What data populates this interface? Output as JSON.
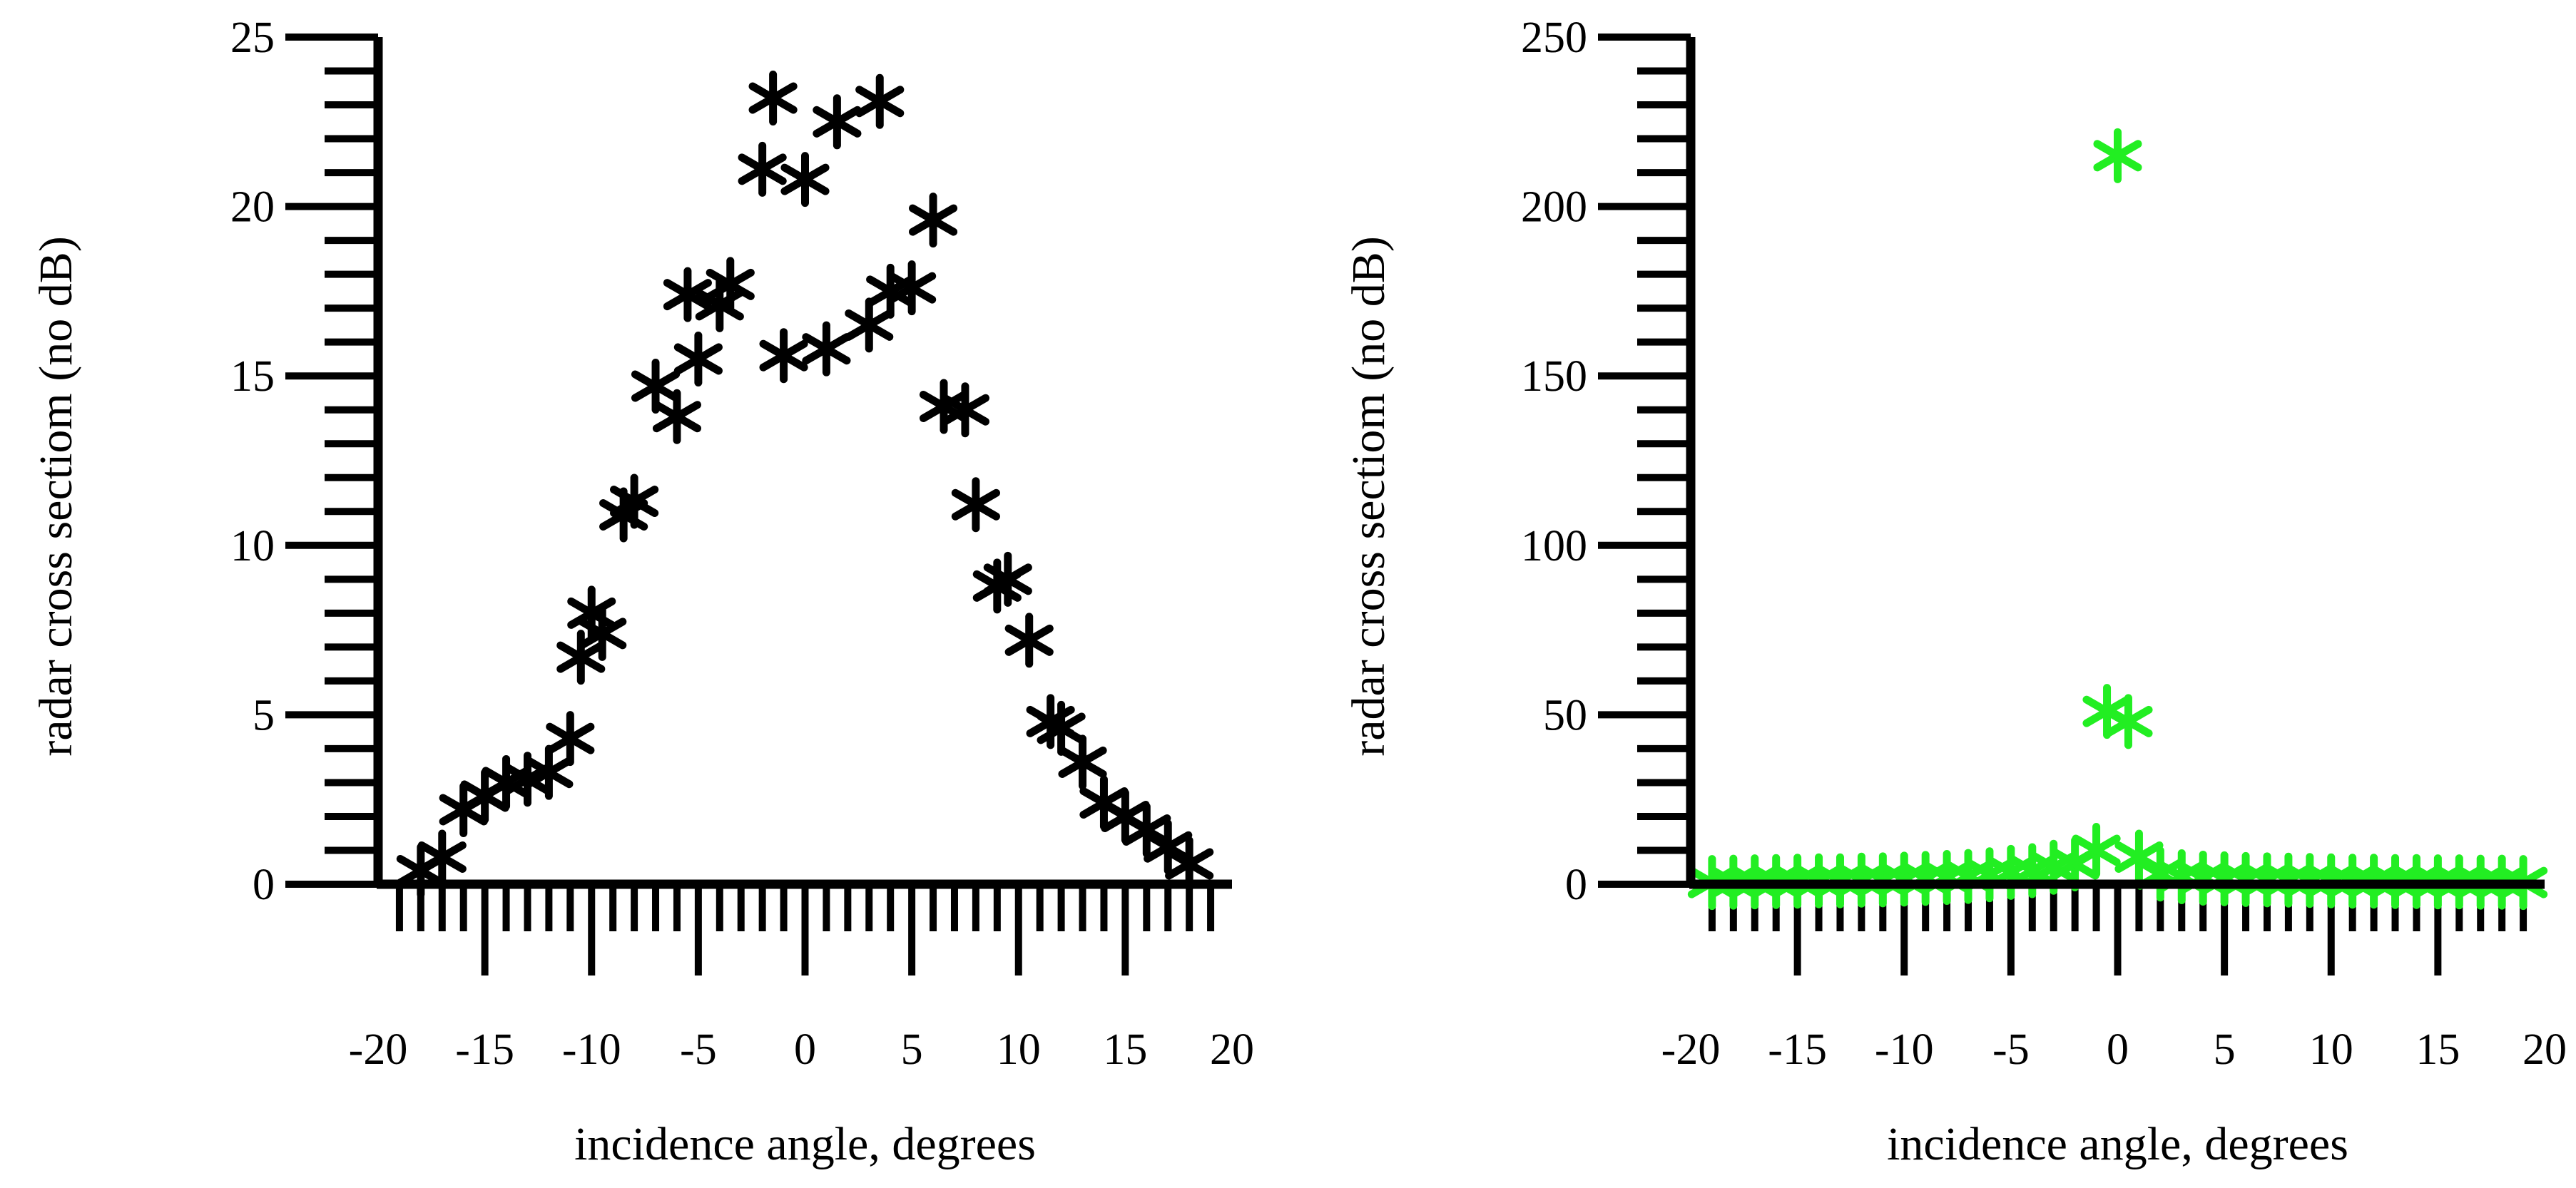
{
  "chart_data": [
    {
      "type": "scatter",
      "xlabel": "incidence angle, degrees",
      "ylabel": "radar cross sectiom (no dB)",
      "xlim": [
        -20,
        20
      ],
      "ylim": [
        0,
        25
      ],
      "xticks": [
        "-20",
        "-15",
        "-10",
        "-5",
        "0",
        "5",
        "10",
        "15",
        "20"
      ],
      "yticks": [
        "0",
        "5",
        "10",
        "15",
        "20",
        "25"
      ],
      "marker": "asterisk",
      "color": "#000000",
      "series": [
        {
          "x": [
            -18,
            -17,
            -16,
            -15,
            -14,
            -13,
            -12,
            -11,
            -10.5,
            -10,
            -9.5,
            -8.5,
            -8,
            -7,
            -6,
            -5.5,
            -5,
            -4,
            -3.5,
            -2,
            -1.5,
            -1,
            0,
            1,
            1.5,
            3,
            3.5,
            4,
            5,
            6,
            6.5,
            7.5,
            8,
            9,
            9.5,
            10.5,
            11.5,
            12,
            13,
            14,
            15,
            16,
            17,
            18
          ],
          "y": [
            0.4,
            0.8,
            2.2,
            2.6,
            3.0,
            3.1,
            3.3,
            4.3,
            6.7,
            8.0,
            7.4,
            10.9,
            11.3,
            14.7,
            13.8,
            17.4,
            15.5,
            17.1,
            17.7,
            21.1,
            23.2,
            15.6,
            20.8,
            15.8,
            22.5,
            16.5,
            23.1,
            17.5,
            17.6,
            19.6,
            14.1,
            14.0,
            11.2,
            8.8,
            9.0,
            7.2,
            4.8,
            4.6,
            3.6,
            2.4,
            2.0,
            1.6,
            1.1,
            0.6
          ]
        }
      ]
    },
    {
      "type": "scatter",
      "xlabel": "incidence angle, degrees",
      "ylabel": "radar cross sectiom (no dB)",
      "xlim": [
        -20,
        20
      ],
      "ylim": [
        0,
        250
      ],
      "xticks": [
        "-20",
        "-15",
        "-10",
        "-5",
        "0",
        "5",
        "10",
        "15",
        "20"
      ],
      "yticks": [
        "0",
        "50",
        "100",
        "150",
        "200",
        "250"
      ],
      "marker": "asterisk",
      "color": "#22ee22",
      "series": [
        {
          "x": [
            -19,
            -18,
            -17,
            -16,
            -15,
            -14,
            -13,
            -12,
            -11,
            -10,
            -9,
            -8,
            -7,
            -6,
            -5,
            -4,
            -3,
            -2,
            -1,
            -0.5,
            0,
            0.5,
            1,
            2,
            3,
            4,
            5,
            6,
            7,
            8,
            9,
            10,
            11,
            12,
            13,
            14,
            15,
            16,
            17,
            18,
            19
          ],
          "y": [
            0.5,
            0.6,
            0.7,
            0.8,
            0.9,
            1.0,
            1.0,
            1.2,
            1.3,
            1.5,
            1.7,
            2.0,
            2.3,
            2.8,
            3.5,
            4.0,
            5.0,
            6.0,
            10.0,
            51.0,
            215.0,
            48.0,
            8.0,
            3.0,
            2.2,
            1.8,
            1.6,
            1.4,
            1.3,
            1.2,
            1.1,
            1.0,
            0.9,
            0.9,
            0.8,
            0.8,
            0.7,
            0.7,
            0.6,
            0.6,
            0.5
          ]
        }
      ]
    }
  ]
}
